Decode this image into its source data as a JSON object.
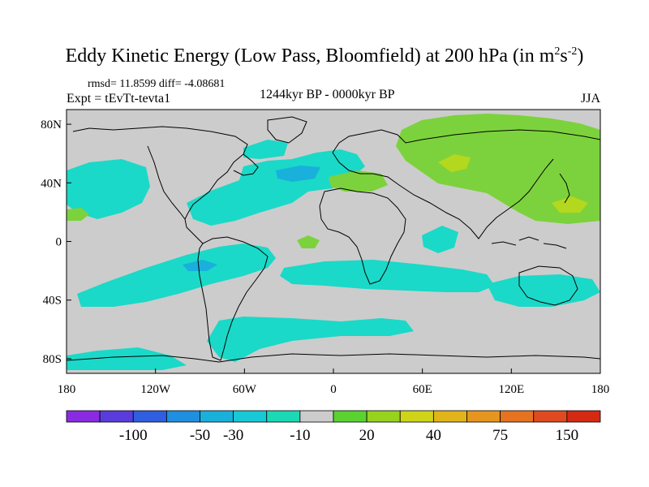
{
  "figure": {
    "title_main": "Eddy Kinetic Energy (Low Pass, Bloomfield) at 200 hPa (in m",
    "title_sup1": "2",
    "title_s": "s",
    "title_sup2": "-2",
    "title_close": ")",
    "stats": "rmsd= 11.8599 diff= -4.08681",
    "period": "1244kyr BP - 0000kyr BP",
    "experiment": "Expt = tEvTt-tevta1",
    "season": "JJA"
  },
  "axes": {
    "lat_labels": [
      "80N",
      "40N",
      "0",
      "40S",
      "80S"
    ],
    "lat_values": [
      80,
      40,
      0,
      -40,
      -80
    ],
    "lon_labels": [
      "180",
      "120W",
      "60W",
      "0",
      "60E",
      "120E",
      "180"
    ],
    "lon_values": [
      -180,
      -120,
      -60,
      0,
      60,
      120,
      180
    ],
    "lat_range": [
      -90,
      90
    ],
    "lon_range": [
      -180,
      180
    ]
  },
  "colorbar": {
    "labels": [
      "-100",
      "-50",
      "-30",
      "-10",
      "20",
      "40",
      "75",
      "150"
    ],
    "colors": [
      "#8a2be2",
      "#5a3cdc",
      "#2f5ee0",
      "#1f8fe0",
      "#19b0dc",
      "#18c8d6",
      "#1ad9b4",
      "#cccccc",
      "#5ad232",
      "#96d21e",
      "#cfd419",
      "#e0b41a",
      "#e6961e",
      "#e67320",
      "#e04a20",
      "#d42a14"
    ]
  },
  "map": {
    "background_color": "#cccccc",
    "cyan_color": "#1ad9c8",
    "green_color": "#7cd23c",
    "lime_color": "#b4d81e",
    "blue_color": "#19b0dc",
    "coast_color": "#000000"
  }
}
